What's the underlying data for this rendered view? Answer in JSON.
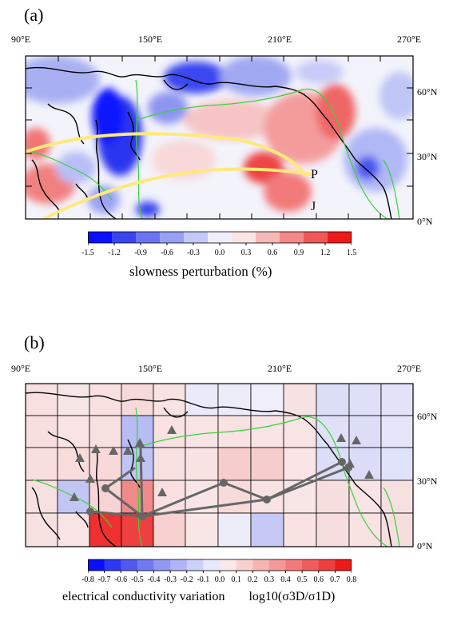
{
  "panel_a": {
    "label": "(a)",
    "lon_ticks": [
      "90°E",
      "150°E",
      "210°E",
      "270°E"
    ],
    "lat_ticks": [
      "60°N",
      "30°N",
      "0°N"
    ],
    "path_labels": [
      "P",
      "J"
    ],
    "colorbar": {
      "ticks": [
        "-1.5",
        "-1.2",
        "-0.9",
        "-0.6",
        "-0.3",
        "0.0",
        "0.3",
        "0.6",
        "0.9",
        "1.2",
        "1.5"
      ],
      "title": "slowness perturbation (%)",
      "colors": [
        "#0a10ff",
        "#3a45f0",
        "#6a74f0",
        "#98a0f2",
        "#c4c9f7",
        "#eeeefc",
        "#fbe4e4",
        "#f7b8b8",
        "#f48888",
        "#f05858",
        "#ee1a1a"
      ]
    }
  },
  "panel_b": {
    "label": "(b)",
    "lon_ticks": [
      "90°E",
      "150°E",
      "210°E",
      "270°E"
    ],
    "lat_ticks": [
      "60°N",
      "30°N",
      "0°N"
    ],
    "colorbar": {
      "ticks": [
        "-0.8",
        "-0.7",
        "-0.6",
        "-0.5",
        "-0.4",
        "-0.3",
        "-0.2",
        "-0.1",
        "0.0",
        "0.1",
        "0.2",
        "0.3",
        "0.4",
        "0.5",
        "0.6",
        "0.7",
        "0.8"
      ],
      "title_main": "electrical conductivity variation",
      "title_formula": "log10(σ3D/σ1D)",
      "colors": [
        "#0a10ff",
        "#2d38f5",
        "#5058f0",
        "#707af0",
        "#9098f2",
        "#aeb4f5",
        "#ccd0f8",
        "#e8eafc",
        "#fbe8e8",
        "#f9d0d0",
        "#f7b4b4",
        "#f59898",
        "#f37a7a",
        "#f15c5c",
        "#ef3e3e",
        "#ee1a1a"
      ]
    }
  }
}
